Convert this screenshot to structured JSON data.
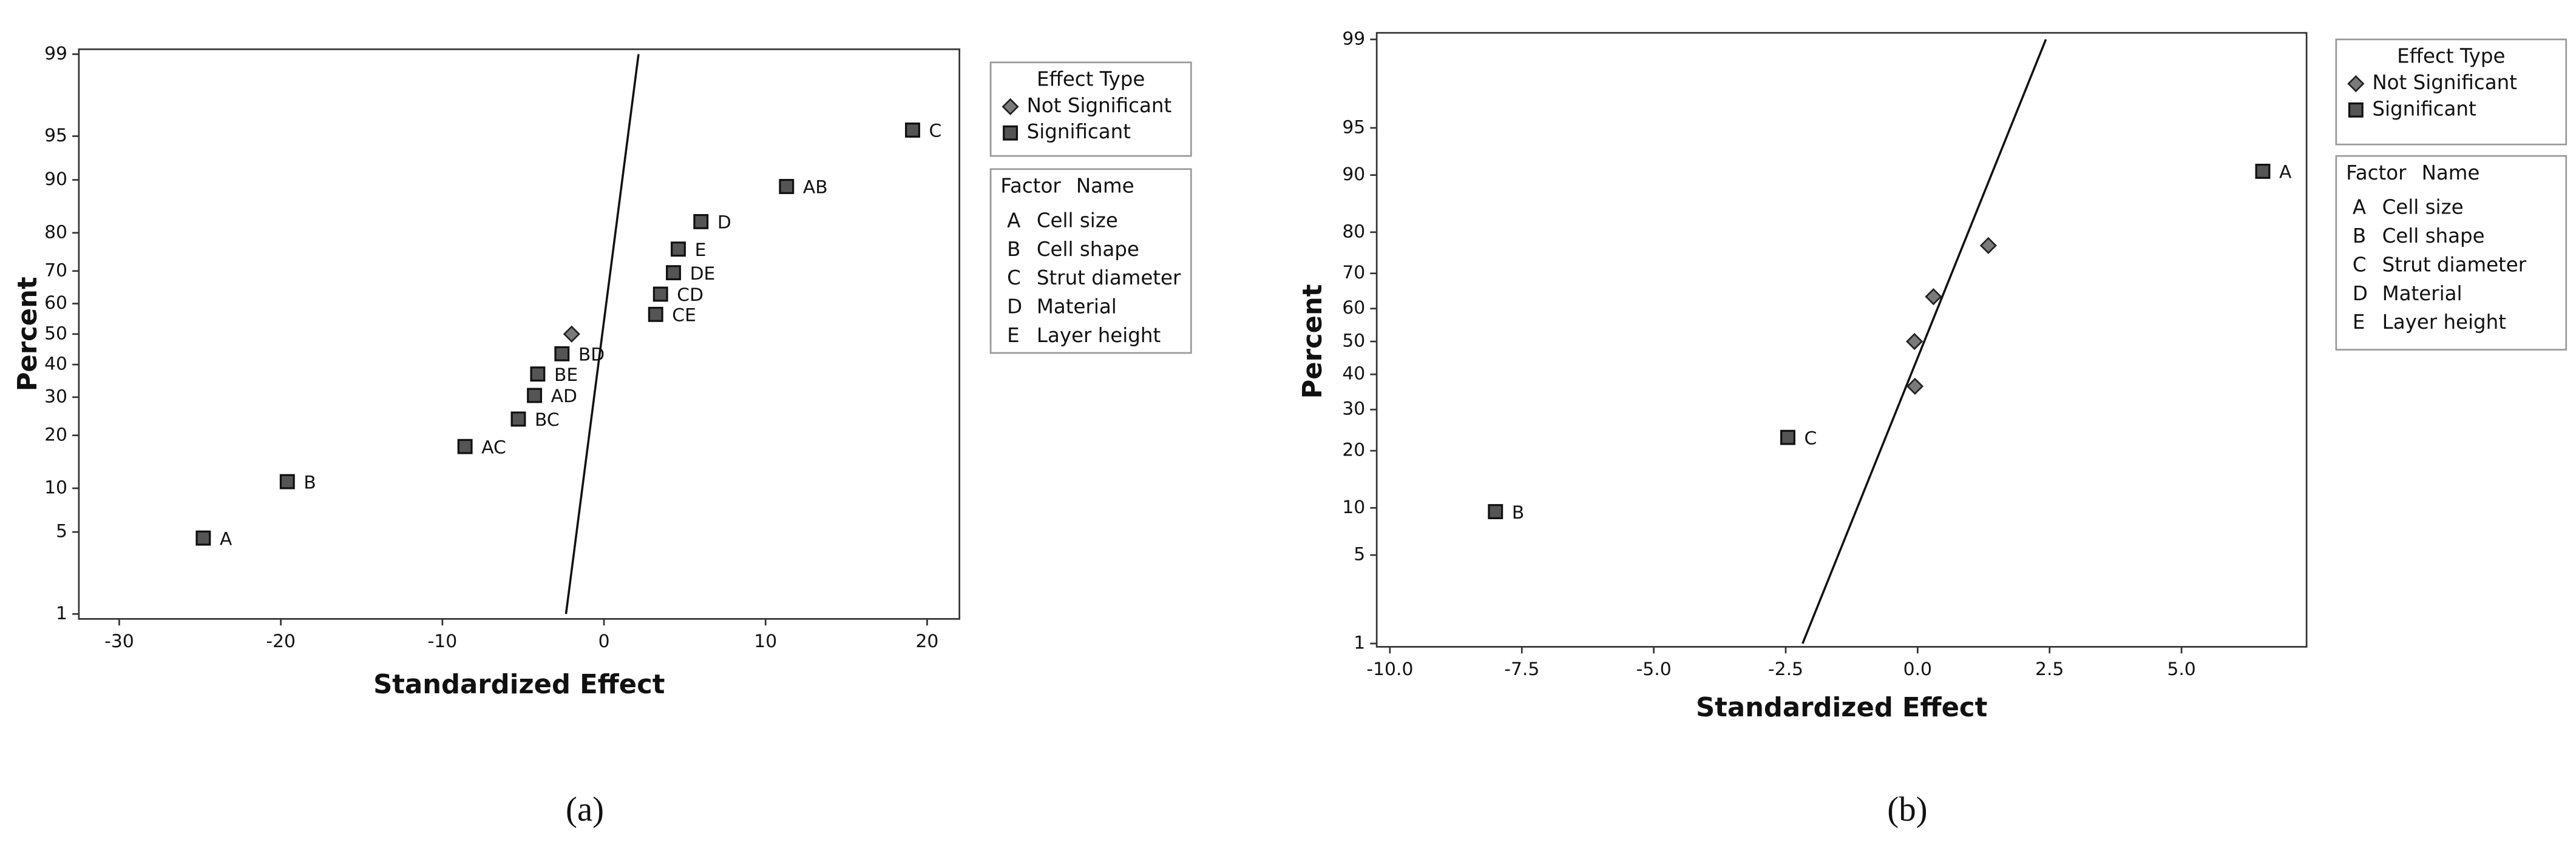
{
  "chart_data": [
    {
      "type": "scatter",
      "xlabel": "Standardized Effect",
      "ylabel": "Percent",
      "yscale": "probability",
      "xlim": [
        -32.5,
        22
      ],
      "ylim": [
        1,
        99
      ],
      "xticks": [
        -30,
        -20,
        -10,
        0,
        10,
        20
      ],
      "yticks": [
        1,
        5,
        10,
        20,
        30,
        40,
        50,
        60,
        70,
        80,
        90,
        95,
        99
      ],
      "legend_title": "Effect Type",
      "series": [
        {
          "name": "Not Significant",
          "marker": "diamond",
          "color": "#7a7a7a",
          "x": [
            -2.0
          ],
          "values": [
            50
          ]
        },
        {
          "name": "Significant",
          "marker": "square",
          "color": "#555555",
          "x": [
            -24.8,
            -19.6,
            -8.6,
            -5.3,
            -4.3,
            -4.1,
            -2.6,
            3.2,
            3.5,
            4.3,
            4.6,
            6.0,
            11.3,
            19.1
          ],
          "values": [
            4.5,
            11,
            17.5,
            24,
            30.5,
            37,
            43.5,
            56.5,
            63,
            69.5,
            76,
            82.5,
            89,
            95.5
          ],
          "point_labels": [
            "A",
            "B",
            "AC",
            "BC",
            "AD",
            "BE",
            "BD",
            "CE",
            "CD",
            "DE",
            "E",
            "D",
            "AB",
            "C"
          ]
        }
      ],
      "reference_line": {
        "x": [
          -2.35,
          2.14
        ],
        "y": [
          1,
          99
        ]
      },
      "factor_legend": {
        "header": [
          "Factor",
          "Name"
        ],
        "rows": [
          [
            "A",
            "Cell size"
          ],
          [
            "B",
            "Cell shape"
          ],
          [
            "C",
            "Strut diameter"
          ],
          [
            "D",
            "Material"
          ],
          [
            "E",
            "Layer height"
          ]
        ]
      },
      "caption": "(a)"
    },
    {
      "type": "scatter",
      "xlabel": "Standardized Effect",
      "ylabel": "Percent",
      "yscale": "probability",
      "xlim": [
        -10.25,
        7.37
      ],
      "ylim": [
        1,
        99
      ],
      "xticks": [
        {
          "value": -10,
          "label": "-10.0"
        },
        {
          "value": -7.5,
          "label": "-7.5"
        },
        {
          "value": -5,
          "label": "-5.0"
        },
        {
          "value": -2.5,
          "label": "-2.5"
        },
        {
          "value": 0,
          "label": "0.0"
        },
        {
          "value": 2.5,
          "label": "2.5"
        },
        {
          "value": 5,
          "label": "5.0"
        }
      ],
      "yticks": [
        1,
        5,
        10,
        20,
        30,
        40,
        50,
        60,
        70,
        80,
        90,
        95,
        99
      ],
      "legend_title": "Effect Type",
      "series": [
        {
          "name": "Not Significant",
          "marker": "diamond",
          "color": "#7a7a7a",
          "x": [
            -0.05,
            -0.06,
            0.3,
            1.34
          ],
          "values": [
            36.5,
            50,
            63.5,
            77
          ]
        },
        {
          "name": "Significant",
          "marker": "square",
          "color": "#555555",
          "x": [
            -8.0,
            -2.46,
            6.54
          ],
          "values": [
            9.5,
            23,
            90.5
          ],
          "point_labels": [
            "B",
            "C",
            "A"
          ]
        }
      ],
      "reference_line": {
        "x": [
          -2.18,
          2.43
        ],
        "y": [
          1,
          99
        ]
      },
      "factor_legend": {
        "header": [
          "Factor",
          "Name"
        ],
        "rows": [
          [
            "A",
            "Cell size"
          ],
          [
            "B",
            "Cell shape"
          ],
          [
            "C",
            "Strut diameter"
          ],
          [
            "D",
            "Material"
          ],
          [
            "E",
            "Layer height"
          ]
        ]
      },
      "caption": "(b)"
    }
  ]
}
